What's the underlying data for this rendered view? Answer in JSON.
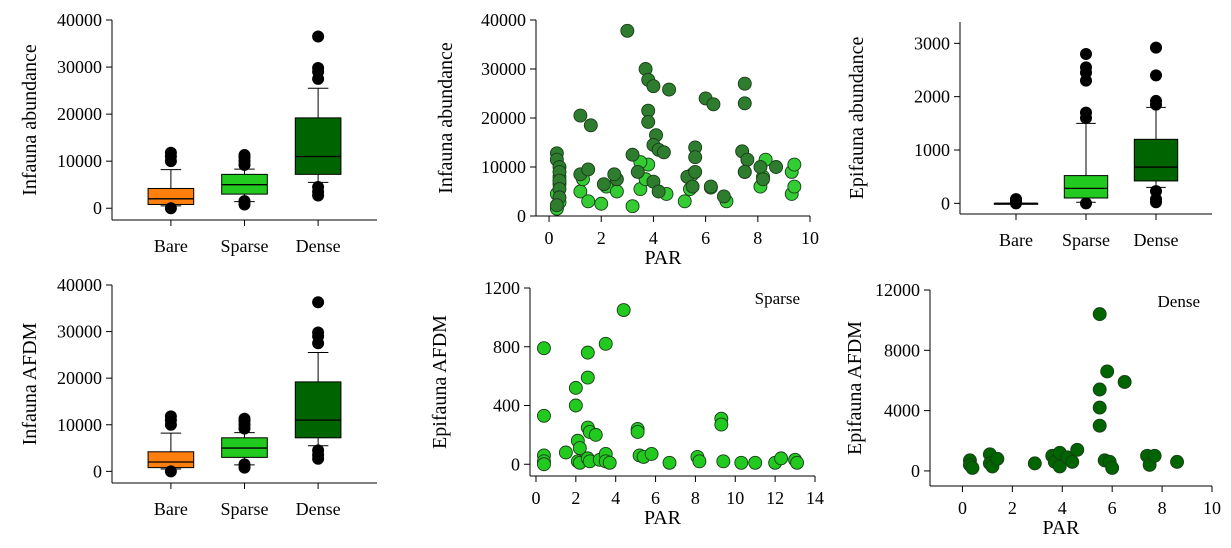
{
  "colors": {
    "bare": "#ff7f0e",
    "sparse": "#22c91e",
    "dense": "#006400",
    "scatter_mixed_light": "#33cc33",
    "scatter_mixed_dark": "#2e7d2e",
    "outlier": "#000000"
  },
  "chart_data": [
    {
      "id": "p1",
      "type": "box",
      "ylabel": "Infauna abundance",
      "xlabel": "",
      "categories": [
        "Bare",
        "Sparse",
        "Dense"
      ],
      "ylim": [
        -2500,
        40000
      ],
      "yticks": [
        0,
        10000,
        20000,
        30000,
        40000
      ],
      "boxes": [
        {
          "category": "Bare",
          "color_key": "bare",
          "whisker_low": 500,
          "q1": 800,
          "median": 2000,
          "q3": 4200,
          "whisker_high": 8200,
          "outliers": [
            0,
            10000,
            11000,
            11800
          ]
        },
        {
          "category": "Sparse",
          "color_key": "sparse",
          "whisker_low": 1400,
          "q1": 3000,
          "median": 5000,
          "q3": 7200,
          "whisker_high": 8300,
          "outliers": [
            800,
            1500,
            9200,
            10000,
            10800,
            11300
          ]
        },
        {
          "category": "Dense",
          "color_key": "dense",
          "whisker_low": 5500,
          "q1": 7200,
          "median": 11000,
          "q3": 19200,
          "whisker_high": 25500,
          "outliers": [
            2700,
            3500,
            4500,
            27500,
            29000,
            29800,
            36500
          ]
        }
      ]
    },
    {
      "id": "p2",
      "type": "scatter",
      "ylabel": "Infauna abundance",
      "xlabel": "PAR",
      "xlim": [
        -0.5,
        10
      ],
      "xticks": [
        0,
        2,
        4,
        6,
        8,
        10
      ],
      "ylim": [
        0,
        40000
      ],
      "yticks": [
        0,
        10000,
        20000,
        30000,
        40000
      ],
      "series": [
        {
          "color_key": "scatter_mixed_light",
          "points": [
            [
              0.3,
              1500
            ],
            [
              0.4,
              2800
            ],
            [
              0.3,
              4500
            ],
            [
              0.4,
              6500
            ],
            [
              0.4,
              8000
            ],
            [
              1.2,
              5000
            ],
            [
              1.5,
              3000
            ],
            [
              2,
              2500
            ],
            [
              2.2,
              6000
            ],
            [
              2.6,
              5000
            ],
            [
              3.2,
              2000
            ],
            [
              3.5,
              5500
            ],
            [
              3.7,
              7500
            ],
            [
              3.8,
              10500
            ],
            [
              4.5,
              4500
            ],
            [
              5.2,
              3000
            ],
            [
              5.4,
              5500
            ],
            [
              5.5,
              8500
            ],
            [
              6.2,
              5800
            ],
            [
              6.8,
              3000
            ],
            [
              7.5,
              9000
            ],
            [
              8.1,
              6000
            ],
            [
              8.2,
              8000
            ],
            [
              8.3,
              11500
            ],
            [
              9.3,
              4500
            ],
            [
              9.4,
              6000
            ],
            [
              9.3,
              9000
            ],
            [
              9.4,
              10500
            ],
            [
              1.3,
              7500
            ],
            [
              3.5,
              11000
            ]
          ]
        },
        {
          "color_key": "scatter_mixed_dark",
          "points": [
            [
              0.3,
              12800
            ],
            [
              0.3,
              11500
            ],
            [
              0.4,
              10000
            ],
            [
              0.4,
              9000
            ],
            [
              0.4,
              7200
            ],
            [
              0.4,
              5500
            ],
            [
              0.4,
              3800
            ],
            [
              0.3,
              2200
            ],
            [
              1.2,
              20500
            ],
            [
              1.6,
              18500
            ],
            [
              1.2,
              8500
            ],
            [
              1.5,
              9500
            ],
            [
              2.1,
              6500
            ],
            [
              2.6,
              7500
            ],
            [
              2.5,
              8500
            ],
            [
              3,
              37800
            ],
            [
              3.2,
              12500
            ],
            [
              3.4,
              9000
            ],
            [
              3.7,
              30000
            ],
            [
              3.8,
              27800
            ],
            [
              3.8,
              21500
            ],
            [
              3.8,
              19200
            ],
            [
              4,
              26500
            ],
            [
              4.1,
              16500
            ],
            [
              4,
              14500
            ],
            [
              4.2,
              13500
            ],
            [
              4.4,
              13000
            ],
            [
              4,
              7000
            ],
            [
              4.2,
              5000
            ],
            [
              4.6,
              25800
            ],
            [
              5.3,
              8000
            ],
            [
              5.6,
              14000
            ],
            [
              5.6,
              12000
            ],
            [
              5.6,
              9000
            ],
            [
              5.5,
              6000
            ],
            [
              6,
              24000
            ],
            [
              6.3,
              22800
            ],
            [
              6.2,
              6000
            ],
            [
              6.7,
              4000
            ],
            [
              7.5,
              27000
            ],
            [
              7.5,
              23000
            ],
            [
              7.4,
              13200
            ],
            [
              7.6,
              11500
            ],
            [
              7.5,
              9000
            ],
            [
              8.1,
              10000
            ],
            [
              8.7,
              10000
            ],
            [
              8.2,
              7500
            ]
          ]
        }
      ]
    },
    {
      "id": "p3",
      "type": "box",
      "ylabel": "Epifauna abundance",
      "xlabel": "",
      "categories": [
        "Bare",
        "Sparse",
        "Dense"
      ],
      "ylim": [
        -200,
        3400
      ],
      "yticks": [
        0,
        1000,
        2000,
        3000
      ],
      "boxes": [
        {
          "category": "Bare",
          "color_key": "bare",
          "whisker_low": 0,
          "q1": 0,
          "median": 0,
          "q3": 0,
          "whisker_high": 0,
          "outliers": [
            0,
            40,
            80
          ]
        },
        {
          "category": "Sparse",
          "color_key": "sparse",
          "whisker_low": 20,
          "q1": 100,
          "median": 280,
          "q3": 520,
          "whisker_high": 1500,
          "outliers": [
            0,
            1600,
            1700,
            2300,
            2450,
            2550,
            2800
          ]
        },
        {
          "category": "Dense",
          "color_key": "dense",
          "whisker_low": 300,
          "q1": 420,
          "median": 680,
          "q3": 1200,
          "whisker_high": 1800,
          "outliers": [
            20,
            80,
            230,
            1850,
            1920,
            2400,
            2920
          ]
        }
      ]
    },
    {
      "id": "p4",
      "type": "box",
      "ylabel": "Infauna AFDM",
      "xlabel": "",
      "categories": [
        "Bare",
        "Sparse",
        "Dense"
      ],
      "ylim": [
        -2500,
        40000
      ],
      "yticks": [
        0,
        10000,
        20000,
        30000,
        40000
      ],
      "boxes": [
        {
          "category": "Bare",
          "color_key": "bare",
          "whisker_low": 500,
          "q1": 800,
          "median": 2000,
          "q3": 4200,
          "whisker_high": 8200,
          "outliers": [
            0,
            10000,
            11000,
            11800
          ]
        },
        {
          "category": "Sparse",
          "color_key": "sparse",
          "whisker_low": 1400,
          "q1": 3000,
          "median": 5000,
          "q3": 7200,
          "whisker_high": 8300,
          "outliers": [
            800,
            1500,
            9200,
            10000,
            10800,
            11300
          ]
        },
        {
          "category": "Dense",
          "color_key": "dense",
          "whisker_low": 5500,
          "q1": 7200,
          "median": 11000,
          "q3": 19200,
          "whisker_high": 25500,
          "outliers": [
            2700,
            3500,
            4500,
            27500,
            29000,
            29800,
            36300
          ]
        }
      ]
    },
    {
      "id": "p5",
      "type": "scatter",
      "ylabel": "Epifauna AFDM",
      "xlabel": "PAR",
      "annotation": "Sparse",
      "xlim": [
        -0.3,
        14
      ],
      "xticks": [
        0,
        2,
        4,
        6,
        8,
        10,
        12,
        14
      ],
      "ylim": [
        -80,
        1200
      ],
      "yticks": [
        0,
        400,
        800,
        1200
      ],
      "series": [
        {
          "color_key": "sparse",
          "points": [
            [
              0.4,
              790
            ],
            [
              0.4,
              330
            ],
            [
              0.4,
              60
            ],
            [
              0.4,
              20
            ],
            [
              0.4,
              0
            ],
            [
              1.5,
              80
            ],
            [
              2,
              520
            ],
            [
              2,
              400
            ],
            [
              2.1,
              160
            ],
            [
              2.1,
              20
            ],
            [
              2.2,
              10
            ],
            [
              2.2,
              110
            ],
            [
              2.6,
              760
            ],
            [
              2.6,
              590
            ],
            [
              2.6,
              250
            ],
            [
              2.7,
              220
            ],
            [
              2.6,
              40
            ],
            [
              2.7,
              20
            ],
            [
              3,
              200
            ],
            [
              3.2,
              30
            ],
            [
              3.5,
              820
            ],
            [
              3.5,
              70
            ],
            [
              3.5,
              20
            ],
            [
              3.7,
              10
            ],
            [
              4.4,
              1050
            ],
            [
              5.1,
              240
            ],
            [
              5.1,
              220
            ],
            [
              5.2,
              60
            ],
            [
              5.4,
              50
            ],
            [
              5.8,
              70
            ],
            [
              6.7,
              10
            ],
            [
              8.1,
              50
            ],
            [
              8.2,
              20
            ],
            [
              9.3,
              310
            ],
            [
              9.3,
              270
            ],
            [
              9.4,
              20
            ],
            [
              10.3,
              10
            ],
            [
              11,
              10
            ],
            [
              12,
              10
            ],
            [
              12.3,
              40
            ],
            [
              13,
              30
            ],
            [
              13.1,
              10
            ]
          ]
        }
      ]
    },
    {
      "id": "p6",
      "type": "scatter",
      "ylabel": "Epifauna AFDM",
      "xlabel": "PAR",
      "annotation": "Dense",
      "xlim": [
        -1.3,
        10
      ],
      "xticks": [
        0,
        2,
        4,
        6,
        8,
        10
      ],
      "ylim": [
        -1000,
        12000
      ],
      "yticks": [
        0,
        4000,
        8000,
        12000
      ],
      "series": [
        {
          "color_key": "dense",
          "points": [
            [
              0.3,
              700
            ],
            [
              0.3,
              400
            ],
            [
              0.4,
              200
            ],
            [
              1.1,
              1100
            ],
            [
              1.1,
              500
            ],
            [
              1.2,
              300
            ],
            [
              1.4,
              800
            ],
            [
              2.9,
              500
            ],
            [
              3.6,
              1000
            ],
            [
              3.7,
              600
            ],
            [
              3.9,
              300
            ],
            [
              3.9,
              1200
            ],
            [
              4.2,
              900
            ],
            [
              4.4,
              600
            ],
            [
              4.6,
              1400
            ],
            [
              5.5,
              10400
            ],
            [
              5.5,
              5400
            ],
            [
              5.5,
              4200
            ],
            [
              5.5,
              3000
            ],
            [
              5.7,
              700
            ],
            [
              5.8,
              6600
            ],
            [
              5.9,
              600
            ],
            [
              6,
              200
            ],
            [
              6.5,
              5900
            ],
            [
              7.4,
              1000
            ],
            [
              7.5,
              400
            ],
            [
              7.7,
              1000
            ],
            [
              8.6,
              600
            ]
          ]
        }
      ]
    }
  ]
}
